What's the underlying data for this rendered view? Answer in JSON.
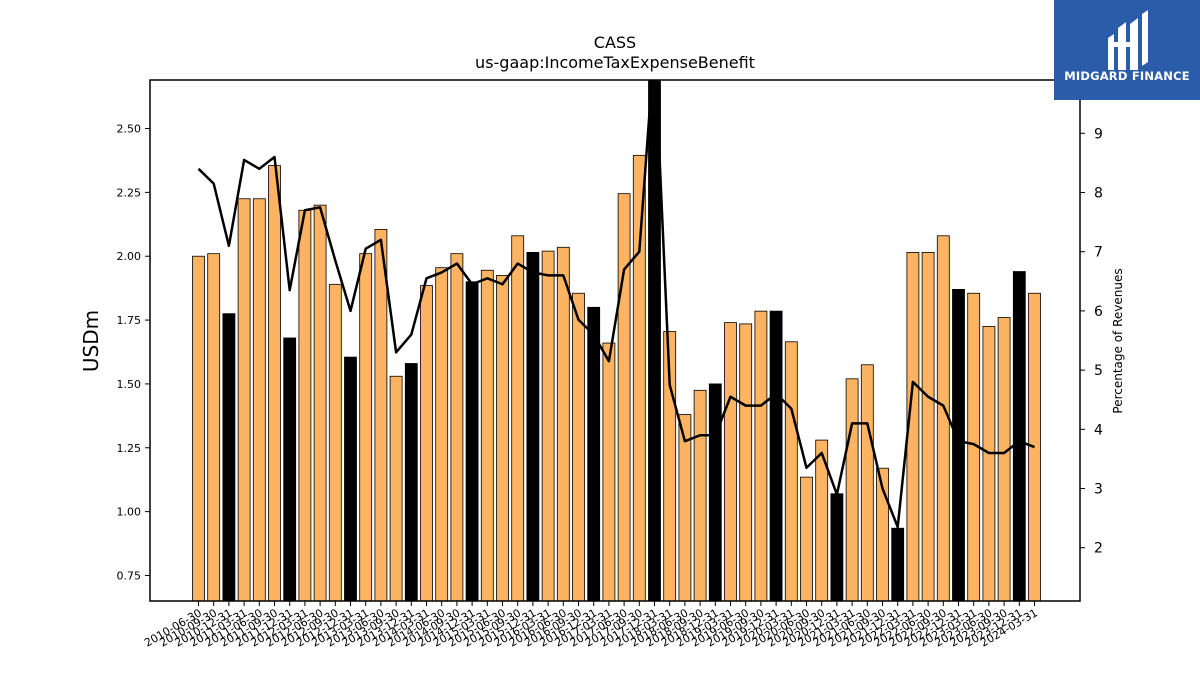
{
  "brand": {
    "logo_text": "MIDGARD FINANCE",
    "color": "#2a5caa"
  },
  "chart_data": {
    "type": "bar",
    "title": "CASS",
    "subtitle": "us-gaap:IncomeTaxExpenseBenefit",
    "ylabel": "USDm",
    "y2label": "Percentage of Revenues",
    "ylim": [
      0.65,
      2.69
    ],
    "y2lim": [
      1.1,
      9.9
    ],
    "yticks": [
      0.75,
      1.0,
      1.25,
      1.5,
      1.75,
      2.0,
      2.25,
      2.5
    ],
    "y2ticks": [
      2,
      3,
      4,
      5,
      6,
      7,
      8,
      9
    ],
    "x_labels": [
      "2010-06-30",
      "2010-09-30",
      "2010-12-31",
      "2011-03-31",
      "2011-06-30",
      "2011-09-30",
      "2011-12-31",
      "2012-03-31",
      "2012-06-30",
      "2012-09-30",
      "2012-12-31",
      "2013-03-31",
      "2013-06-30",
      "2013-09-30",
      "2013-12-31",
      "2014-03-31",
      "2014-06-30",
      "2014-09-30",
      "2014-12-31",
      "2015-03-31",
      "2015-06-30",
      "2015-09-30",
      "2015-12-31",
      "2016-03-31",
      "2016-06-30",
      "2016-09-30",
      "2016-12-31",
      "2017-03-31",
      "2017-06-30",
      "2017-09-30",
      "2017-12-31",
      "2018-03-31",
      "2018-06-30",
      "2018-09-30",
      "2018-12-31",
      "2019-03-31",
      "2019-06-30",
      "2019-09-30",
      "2019-12-31",
      "2020-03-31",
      "2020-06-30",
      "2020-09-30",
      "2020-12-31",
      "2021-03-31",
      "2021-06-30",
      "2021-09-30",
      "2021-12-31",
      "2022-03-31",
      "2022-06-30",
      "2022-09-30",
      "2022-12-31",
      "2023-03-31",
      "2023-06-30",
      "2023-09-30",
      "2023-12-31",
      "2024-03-31"
    ],
    "series": [
      {
        "kind": "bar",
        "values": [
          2.0,
          2.01,
          1.775,
          2.225,
          2.225,
          2.355,
          1.68,
          2.18,
          2.2,
          1.89,
          1.605,
          2.01,
          2.105,
          1.53,
          1.58,
          1.885,
          1.955,
          2.01,
          1.9,
          1.945,
          1.925,
          2.08,
          2.015,
          2.02,
          2.035,
          1.855,
          1.8,
          1.66,
          2.245,
          2.395,
          2.72,
          1.705,
          1.38,
          1.475,
          1.5,
          1.74,
          1.735,
          1.785,
          1.785,
          1.665,
          1.135,
          1.28,
          1.07,
          1.52,
          1.575,
          1.17,
          0.935,
          2.015,
          2.015,
          2.08,
          1.87,
          1.855,
          1.725,
          1.76,
          1.94,
          1.855
        ],
        "highlight": [
          false,
          false,
          true,
          false,
          false,
          false,
          true,
          false,
          false,
          false,
          true,
          false,
          false,
          false,
          true,
          false,
          false,
          false,
          true,
          false,
          false,
          false,
          true,
          false,
          false,
          false,
          true,
          false,
          false,
          false,
          true,
          false,
          false,
          false,
          true,
          false,
          false,
          false,
          true,
          false,
          false,
          false,
          true,
          false,
          false,
          false,
          true,
          false,
          false,
          false,
          true,
          false,
          false,
          false,
          true,
          false
        ],
        "color": "#fdb462",
        "highlight_color": "#000000"
      },
      {
        "kind": "line",
        "axis": "right",
        "values": [
          8.4,
          8.15,
          7.1,
          8.55,
          8.4,
          8.6,
          6.35,
          7.7,
          7.75,
          6.85,
          6.0,
          7.05,
          7.2,
          5.3,
          5.6,
          6.55,
          6.65,
          6.8,
          6.45,
          6.55,
          6.45,
          6.8,
          6.65,
          6.6,
          6.6,
          5.85,
          5.6,
          5.15,
          6.7,
          7.0,
          10.5,
          4.75,
          3.8,
          3.9,
          3.9,
          4.55,
          4.4,
          4.4,
          4.6,
          4.35,
          3.35,
          3.6,
          2.9,
          4.1,
          4.1,
          3.0,
          2.35,
          4.8,
          4.55,
          4.4,
          3.8,
          3.75,
          3.6,
          3.6,
          3.8,
          3.7
        ],
        "color": "#000000"
      }
    ]
  }
}
